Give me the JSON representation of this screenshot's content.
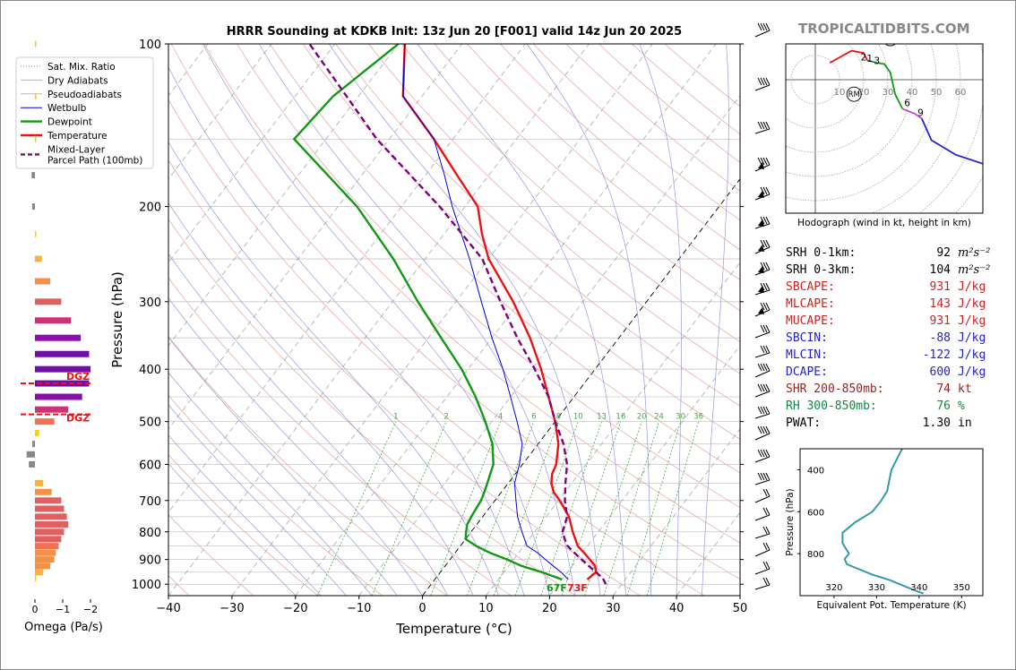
{
  "title": "HRRR Sounding at KDKB Init: 13z Jun 20 [F001] valid 14z Jun 20 2025",
  "brand": "TROPICALTIDBITS.COM",
  "skewt": {
    "xlabel": "Temperature (°C)",
    "ylabel": "Pressure (hPa)",
    "x_ticks": [
      -40,
      -30,
      -20,
      -10,
      0,
      10,
      20,
      30,
      40,
      50
    ],
    "p_ticks": [
      100,
      200,
      300,
      400,
      500,
      600,
      700,
      800,
      900,
      1000
    ],
    "mix_ratio_labels": [
      "1",
      "2",
      "4",
      "6",
      "8",
      "10",
      "13",
      "16",
      "20",
      "24",
      "30",
      "36"
    ],
    "surface_dewpoint_label": "67F",
    "surface_temp_label": "73F"
  },
  "legend": {
    "items": [
      {
        "label": "Sat. Mix. Ratio",
        "color": "#6a6",
        "style": "dotted"
      },
      {
        "label": "Dry Adiabats",
        "color": "#e8a0a0",
        "style": "solid"
      },
      {
        "label": "Pseudoadiabats",
        "color": "#b8b8b8",
        "style": "solid"
      },
      {
        "label": "Wetbulb",
        "color": "#0000dd",
        "style": "solid"
      },
      {
        "label": "Dewpoint",
        "color": "#119911",
        "style": "solid"
      },
      {
        "label": "Temperature",
        "color": "#ee1111",
        "style": "solid"
      },
      {
        "label": "Mixed-Layer",
        "label2": "Parcel Path (100mb)",
        "color": "#800080",
        "style": "dashed"
      }
    ]
  },
  "omega": {
    "xlabel": "Omega (Pa/s)",
    "ticks": [
      "0",
      "−1",
      "−2"
    ],
    "dgz_label": "DGZ"
  },
  "hodograph": {
    "title": "Hodograph (wind in kt, height in km)",
    "ring_labels": [
      "10",
      "20",
      "30",
      "40",
      "50",
      "60"
    ],
    "height_labels": [
      "2",
      "1",
      "3",
      "6",
      "9"
    ],
    "marker_lm": "LM",
    "marker_rm": "RM"
  },
  "stats": [
    {
      "key": "SRH 0-1km:",
      "value": "92",
      "unit": "m²s⁻²",
      "color": "#000000"
    },
    {
      "key": "SRH 0-3km:",
      "value": "104",
      "unit": "m²s⁻²",
      "color": "#000000"
    },
    {
      "key": "SBCAPE:",
      "value": "931",
      "unit": "J/kg",
      "color": "#cc2222"
    },
    {
      "key": "MLCAPE:",
      "value": "143",
      "unit": "J/kg",
      "color": "#cc2222"
    },
    {
      "key": "MUCAPE:",
      "value": "931",
      "unit": "J/kg",
      "color": "#cc2222"
    },
    {
      "key": "SBCIN:",
      "value": "-88",
      "unit": "J/kg",
      "color": "#2222cc"
    },
    {
      "key": "MLCIN:",
      "value": "-122",
      "unit": "J/kg",
      "color": "#2222cc"
    },
    {
      "key": "DCAPE:",
      "value": "600",
      "unit": "J/kg",
      "color": "#2222cc"
    },
    {
      "key": "SHR 200-850mb:",
      "value": "74",
      "unit": "kt",
      "color": "#992222"
    },
    {
      "key": "RH 300-850mb:",
      "value": "76",
      "unit": "%",
      "color": "#118844"
    },
    {
      "key": "PWAT:",
      "value": "1.30",
      "unit": "in",
      "color": "#000000"
    }
  ],
  "theta_e": {
    "xlabel": "Equivalent Pot. Temperature (K)",
    "ylabel": "Pressure (hPa)",
    "x_ticks": [
      "320",
      "330",
      "340",
      "350"
    ],
    "y_ticks": [
      "400",
      "600",
      "800"
    ]
  },
  "chart_data": [
    {
      "type": "line",
      "name": "skew-t",
      "title": "HRRR Sounding at KDKB Init: 13z Jun 20 [F001] valid 14z Jun 20 2025",
      "xlabel": "Temperature (°C)",
      "ylabel": "Pressure (hPa)",
      "xlim": [
        -40,
        50
      ],
      "ylim": [
        1050,
        100
      ],
      "y_scale": "log",
      "grid": true,
      "legend_position": "top-left",
      "series": [
        {
          "name": "Temperature",
          "color": "#ee1111",
          "p": [
            980,
            950,
            925,
            900,
            875,
            850,
            800,
            750,
            700,
            675,
            650,
            625,
            600,
            550,
            500,
            450,
            400,
            350,
            300,
            250,
            225,
            200,
            175,
            150,
            125,
            100
          ],
          "t": [
            24,
            24.5,
            23.6,
            22,
            20.3,
            18.5,
            16,
            13.6,
            10.2,
            8.2,
            6.8,
            5.8,
            5.3,
            3.2,
            0,
            -4,
            -8.5,
            -14,
            -21,
            -30,
            -34,
            -38,
            -45,
            -53,
            -63,
            -69
          ]
        },
        {
          "name": "Dewpoint",
          "color": "#119911",
          "p": [
            980,
            950,
            925,
            900,
            875,
            850,
            825,
            800,
            775,
            750,
            725,
            700,
            675,
            650,
            600,
            550,
            500,
            450,
            400,
            350,
            300,
            250,
            200,
            150,
            125,
            100
          ],
          "t": [
            20,
            16,
            12,
            9,
            5.5,
            2.5,
            0,
            -0.8,
            -1.5,
            -1.8,
            -2,
            -2.2,
            -2.7,
            -3.3,
            -4.6,
            -7.2,
            -11,
            -15.5,
            -21,
            -28,
            -36,
            -45,
            -57,
            -75,
            -74,
            -70
          ]
        },
        {
          "name": "Wetbulb",
          "color": "#0000dd",
          "p": [
            980,
            950,
            925,
            900,
            875,
            850,
            800,
            750,
            700,
            650,
            600,
            550,
            500,
            450,
            400,
            350,
            300,
            250,
            200,
            175,
            150,
            125,
            100
          ],
          "t": [
            21,
            19,
            17,
            15,
            13,
            10.5,
            8,
            5.5,
            3.3,
            1,
            -0.5,
            -2.5,
            -6,
            -10,
            -14.5,
            -20,
            -26,
            -33,
            -42,
            -47,
            -53,
            -63,
            -69
          ]
        },
        {
          "name": "Mixed-Layer Parcel Path (100mb)",
          "color": "#800080",
          "p": [
            1000,
            975,
            950,
            925,
            900,
            875,
            850,
            825,
            800,
            750,
            700,
            650,
            600,
            550,
            500,
            450,
            400,
            350,
            300,
            250,
            200,
            150,
            100
          ],
          "t": [
            27.5,
            26.3,
            24.5,
            22.6,
            20.7,
            18.8,
            16.9,
            15.6,
            14.4,
            13.3,
            11,
            9,
            7,
            4,
            0,
            -4,
            -9.5,
            -16,
            -23,
            -31,
            -44,
            -62,
            -84
          ]
        }
      ],
      "surface_labels": {
        "dewpoint": "67F",
        "temperature": "73F"
      }
    },
    {
      "type": "bar",
      "name": "omega",
      "xlabel": "Omega (Pa/s)",
      "orientation": "horizontal",
      "xlim": [
        0,
        -2
      ],
      "units": "Pa/s",
      "bars": [
        {
          "p": 100,
          "v": -0.05,
          "color": "#ffd000"
        },
        {
          "p": 125,
          "v": -0.05,
          "color": "#ffd000"
        },
        {
          "p": 150,
          "v": -0.02,
          "color": "#ffd000"
        },
        {
          "p": 175,
          "v": 0.12,
          "color": "#888888"
        },
        {
          "p": 200,
          "v": 0.1,
          "color": "#888888"
        },
        {
          "p": 225,
          "v": -0.05,
          "color": "#ffd000"
        },
        {
          "p": 250,
          "v": -0.25,
          "color": "#fbb040"
        },
        {
          "p": 275,
          "v": -0.55,
          "color": "#f59045"
        },
        {
          "p": 300,
          "v": -0.95,
          "color": "#e06060"
        },
        {
          "p": 325,
          "v": -1.3,
          "color": "#cc3377"
        },
        {
          "p": 350,
          "v": -1.65,
          "color": "#8811aa"
        },
        {
          "p": 375,
          "v": -1.95,
          "color": "#7010a8"
        },
        {
          "p": 400,
          "v": -2.0,
          "color": "#7010a8"
        },
        {
          "p": 425,
          "v": -1.95,
          "color": "#7010a8"
        },
        {
          "p": 450,
          "v": -1.7,
          "color": "#8811aa"
        },
        {
          "p": 475,
          "v": -1.2,
          "color": "#cc3377"
        },
        {
          "p": 500,
          "v": -0.7,
          "color": "#f07050"
        },
        {
          "p": 525,
          "v": -0.15,
          "color": "#ffd000"
        },
        {
          "p": 550,
          "v": 0.1,
          "color": "#888888"
        },
        {
          "p": 575,
          "v": 0.3,
          "color": "#888888"
        },
        {
          "p": 600,
          "v": 0.22,
          "color": "#888888"
        },
        {
          "p": 650,
          "v": -0.3,
          "color": "#fbb040"
        },
        {
          "p": 675,
          "v": -0.6,
          "color": "#f59045"
        },
        {
          "p": 700,
          "v": -0.95,
          "color": "#e06060"
        },
        {
          "p": 725,
          "v": -1.05,
          "color": "#e06060"
        },
        {
          "p": 750,
          "v": -1.15,
          "color": "#e06060"
        },
        {
          "p": 775,
          "v": -1.2,
          "color": "#e06060"
        },
        {
          "p": 800,
          "v": -1.05,
          "color": "#e06060"
        },
        {
          "p": 825,
          "v": -0.95,
          "color": "#e06060"
        },
        {
          "p": 850,
          "v": -0.85,
          "color": "#f07050"
        },
        {
          "p": 875,
          "v": -0.75,
          "color": "#f59045"
        },
        {
          "p": 900,
          "v": -0.7,
          "color": "#f59045"
        },
        {
          "p": 925,
          "v": -0.55,
          "color": "#f59045"
        },
        {
          "p": 950,
          "v": -0.3,
          "color": "#fbb040"
        },
        {
          "p": 975,
          "v": -0.05,
          "color": "#ffd000"
        }
      ],
      "dgz_bounds_hpa": [
        425,
        485
      ]
    },
    {
      "type": "line",
      "name": "hodograph",
      "title": "Hodograph (wind in kt, height in km)",
      "units": "kt",
      "ring_values": [
        10,
        20,
        30,
        40,
        50,
        60
      ],
      "segments": [
        {
          "color": "#ee1111",
          "points": [
            [
              6,
              7
            ],
            [
              15,
              12
            ],
            [
              20,
              11
            ],
            [
              21.5,
              8
            ]
          ]
        },
        {
          "color": "#119911",
          "points": [
            [
              21.5,
              8
            ],
            [
              25.5,
              7
            ],
            [
              28.5,
              6.5
            ],
            [
              31,
              3
            ],
            [
              33,
              -6
            ],
            [
              36,
              -12
            ]
          ]
        },
        {
          "color": "#cc44cc",
          "points": [
            [
              36,
              -12
            ],
            [
              41,
              -14
            ],
            [
              44,
              -16
            ]
          ]
        },
        {
          "color": "#2222dd",
          "points": [
            [
              44,
              -16
            ],
            [
              48,
              -25
            ],
            [
              58,
              -31
            ],
            [
              70,
              -35
            ],
            [
              72,
              -40
            ],
            [
              69.5,
              -48
            ]
          ]
        }
      ],
      "height_labels": [
        {
          "label": "2",
          "u": 20,
          "v": 8
        },
        {
          "label": "1",
          "u": 22.5,
          "v": 7.5
        },
        {
          "label": "3",
          "u": 25.5,
          "v": 6.5
        },
        {
          "label": "6",
          "u": 38,
          "v": -11
        },
        {
          "label": "9",
          "u": 43.5,
          "v": -15
        }
      ],
      "storm_motion": {
        "LM": [
          31,
          17
        ],
        "RM": [
          16,
          -6
        ]
      }
    },
    {
      "type": "line",
      "name": "theta-e",
      "xlabel": "Equivalent Pot. Temperature (K)",
      "ylabel": "Pressure (hPa)",
      "xlim": [
        312,
        355
      ],
      "ylim": [
        1000,
        300
      ],
      "series": [
        {
          "name": "theta-e",
          "color": "#3399aa",
          "p": [
            300,
            400,
            450,
            500,
            550,
            600,
            650,
            700,
            750,
            800,
            825,
            850,
            900,
            925,
            950,
            975,
            990
          ],
          "t": [
            336,
            333.5,
            333,
            332.5,
            331,
            329,
            325,
            322,
            322,
            323.5,
            322.5,
            323,
            329,
            333,
            336,
            339,
            341
          ]
        }
      ]
    }
  ]
}
